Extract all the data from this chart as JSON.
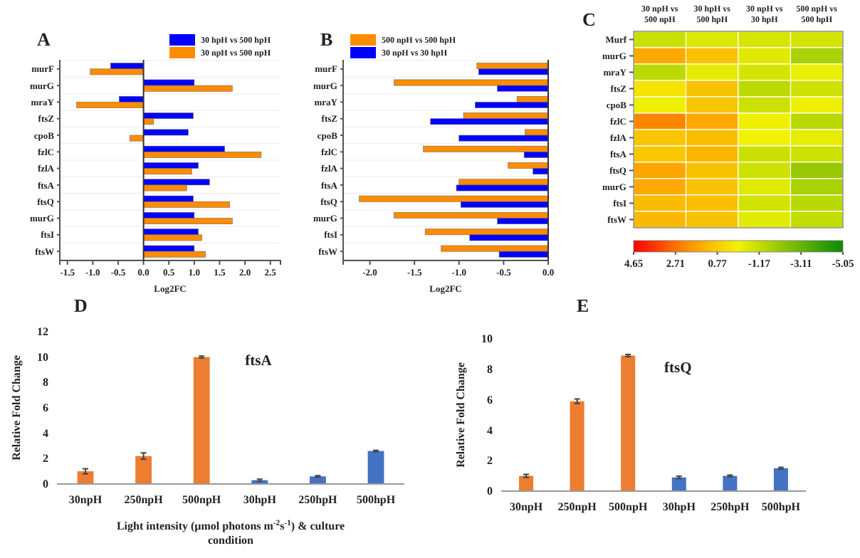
{
  "chart_data": [
    {
      "type": "bar",
      "title": "A",
      "orientation": "horizontal",
      "categories": [
        "murF",
        "murG",
        "mraY",
        "ftsZ",
        "cpoB",
        "fzlC",
        "fzlA",
        "ftsA",
        "ftsQ",
        "murG",
        "ftsI",
        "ftsW"
      ],
      "series": [
        {
          "name": "30 hpH vs 500 hpH",
          "color": "#0000ff",
          "values": [
            -0.65,
            1.0,
            -0.48,
            0.98,
            0.88,
            1.6,
            1.08,
            1.3,
            0.98,
            1.0,
            1.08,
            1.0
          ]
        },
        {
          "name": "30 npH vs 500 npH",
          "color": "#ff8c00",
          "values": [
            -1.05,
            1.75,
            -1.32,
            0.2,
            -0.27,
            2.32,
            0.95,
            0.85,
            1.7,
            1.75,
            1.15,
            1.22
          ]
        }
      ],
      "xlim": [
        -1.65,
        2.7
      ],
      "xticks": [
        {
          "value": -1.5,
          "label": "-1.5"
        },
        {
          "value": -1,
          "label": "-1.0"
        },
        {
          "value": -0.5,
          "label": "-0.5"
        },
        {
          "value": 0,
          "label": "0.0"
        },
        {
          "value": 0.5,
          "label": "0.5"
        },
        {
          "value": 1,
          "label": "1.0"
        },
        {
          "value": 1.5,
          "label": "1.5"
        },
        {
          "value": 2,
          "label": "2.0"
        },
        {
          "value": 2.5,
          "label": "2.5"
        }
      ],
      "xlabel": "Log2FC",
      "legend": "top right"
    },
    {
      "type": "bar",
      "title": "B",
      "orientation": "horizontal",
      "categories": [
        "murF",
        "murG",
        "mraY",
        "ftsZ",
        "cpoB",
        "fzlC",
        "fzlA",
        "ftsA",
        "ftsQ",
        "murG",
        "ftsI",
        "ftsW"
      ],
      "series": [
        {
          "name": "500 npH vs 500 hpH",
          "color": "#ff8c00",
          "values": [
            -0.8,
            -1.73,
            -0.35,
            -0.95,
            -0.26,
            -1.4,
            -0.45,
            -1.0,
            -2.12,
            -1.73,
            -1.38,
            -1.2
          ]
        },
        {
          "name": "30 npH vs 30  hpH",
          "color": "#0000ff",
          "values": [
            -0.78,
            -0.57,
            -0.82,
            -1.32,
            -1.0,
            -0.27,
            -0.17,
            -1.03,
            -0.98,
            -0.57,
            -0.88,
            -0.55
          ]
        }
      ],
      "xlim": [
        -2.3,
        0
      ],
      "xticks": [
        {
          "value": -2,
          "label": "-2.0"
        },
        {
          "value": -1.5,
          "label": "-1.5"
        },
        {
          "value": -1,
          "label": "-1.0"
        },
        {
          "value": -0.5,
          "label": "-0.5"
        },
        {
          "value": 0,
          "label": "0.0"
        }
      ],
      "xlabel": "Log2FC",
      "legend": "top left"
    },
    {
      "type": "heatmap",
      "title": "C",
      "categories": [
        "30 npH vs 500 npH",
        "30 hpH vs 500 hpH",
        "30 npH vs 30  hpH",
        "500 npH vs 500 hpH"
      ],
      "y_categories": [
        "Murf",
        "murG",
        "mraY",
        "ftsZ",
        "cpoB",
        "fzlC",
        "fzlA",
        "ftsA",
        "ftsQ",
        "murG",
        "ftsI",
        "ftsW"
      ],
      "cells": [
        [
          -1.05,
          -0.65,
          -0.78,
          -0.8
        ],
        [
          1.59,
          1.0,
          -0.57,
          -1.73
        ],
        [
          -1.32,
          -0.48,
          -0.82,
          -0.35
        ],
        [
          0.2,
          0.98,
          -1.32,
          -0.95
        ],
        [
          -0.27,
          0.88,
          -1.0,
          -0.26
        ],
        [
          2.32,
          1.6,
          -0.27,
          -1.4
        ],
        [
          0.95,
          1.08,
          -0.17,
          -0.45
        ],
        [
          0.85,
          1.3,
          -1.03,
          -1.0
        ],
        [
          1.7,
          0.98,
          -0.98,
          -2.12
        ],
        [
          1.59,
          1.0,
          -0.57,
          -1.73
        ],
        [
          1.15,
          1.08,
          -0.88,
          -1.38
        ],
        [
          1.22,
          1.0,
          -0.55,
          -1.2
        ]
      ],
      "clim": [
        4.65,
        -5.05
      ],
      "cticks": [
        4.65,
        2.71,
        0.77,
        -1.17,
        -3.11,
        -5.05
      ]
    },
    {
      "type": "bar",
      "title": "D",
      "categories": [
        "30npH",
        "250npH",
        "500npH",
        "30hpH",
        "250hpH",
        "500hpH"
      ],
      "values": [
        1.0,
        2.2,
        10.0,
        0.3,
        0.6,
        2.6
      ],
      "errors": [
        0.2,
        0.25,
        0.08,
        0.08,
        0.06,
        0.05
      ],
      "colors": [
        "#ed7d31",
        "#ed7d31",
        "#ed7d31",
        "#4472c4",
        "#4472c4",
        "#4472c4"
      ],
      "ylim": [
        0,
        12
      ],
      "yticks": [
        0,
        2,
        4,
        6,
        8,
        10,
        12
      ],
      "ylabel": "Relative Fold Change",
      "xlabel": "Light intensity (µmol photons m$^{-2}$s$^{-1}$) & culture condition",
      "annotations": [
        "ftsA"
      ]
    },
    {
      "type": "bar",
      "title": "E",
      "categories": [
        "30npH",
        "250npH",
        "500npH",
        "30hpH",
        "250hpH",
        "500hpH"
      ],
      "values": [
        1.0,
        5.9,
        8.9,
        0.9,
        1.0,
        1.5
      ],
      "errors": [
        0.1,
        0.15,
        0.07,
        0.08,
        0.05,
        0.06
      ],
      "colors": [
        "#ed7d31",
        "#ed7d31",
        "#ed7d31",
        "#4472c4",
        "#4472c4",
        "#4472c4"
      ],
      "ylim": [
        0,
        10
      ],
      "yticks": [
        0,
        2,
        4,
        6,
        8,
        10
      ],
      "ylabel": "Relative Fold Change",
      "annotations": [
        "ftsQ"
      ]
    }
  ]
}
